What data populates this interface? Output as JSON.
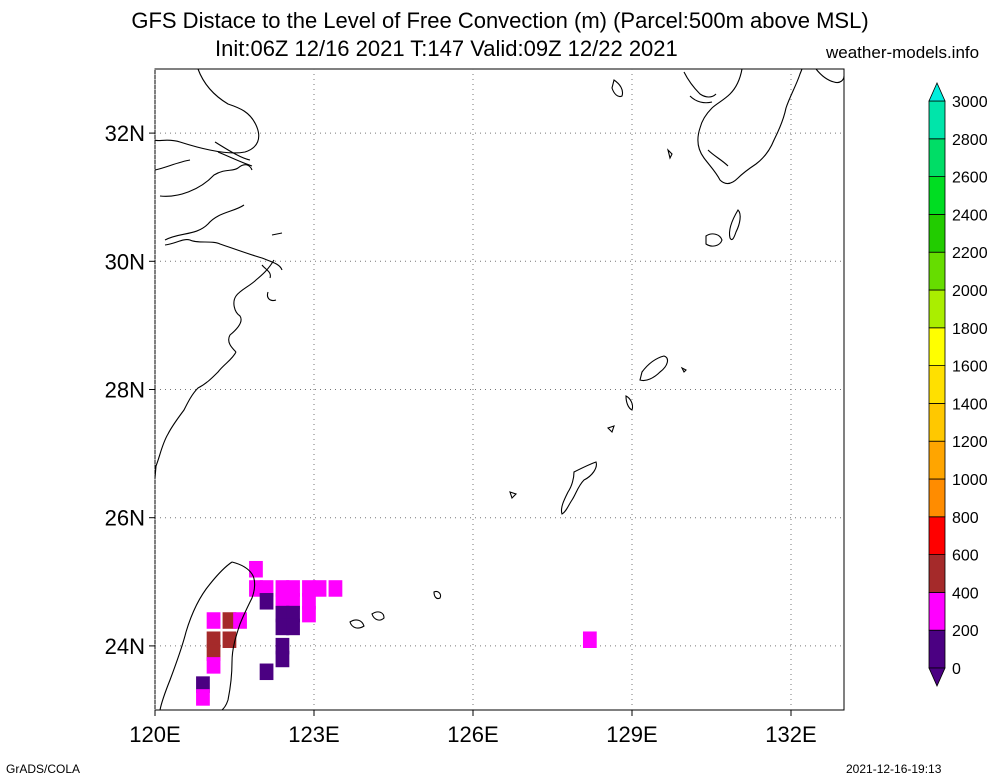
{
  "title": {
    "line1": "GFS Distace to the Level of Free Convection (m) (Parcel:500m above MSL)",
    "line2": "Init:06Z 12/16 2021 T:147 Valid:09Z 12/22 2021",
    "site": "weather-models.info"
  },
  "footer": {
    "left": "GrADS/COLA",
    "right": "2021-12-16-19:13"
  },
  "map": {
    "region": "East China Sea",
    "lon_range": [
      120,
      133
    ],
    "lat_range": [
      23,
      33
    ],
    "lon_ticks": [
      {
        "value": 120,
        "label": "120E"
      },
      {
        "value": 123,
        "label": "123E"
      },
      {
        "value": 126,
        "label": "126E"
      },
      {
        "value": 129,
        "label": "129E"
      },
      {
        "value": 132,
        "label": "132E"
      }
    ],
    "lat_ticks": [
      {
        "value": 24,
        "label": "24N"
      },
      {
        "value": 26,
        "label": "26N"
      },
      {
        "value": 28,
        "label": "28N"
      },
      {
        "value": 30,
        "label": "30N"
      },
      {
        "value": 32,
        "label": "32N"
      }
    ]
  },
  "colorbar": {
    "levels": [
      {
        "value": 0,
        "label": "0",
        "color": "#4b0082"
      },
      {
        "value": 200,
        "label": "200",
        "color": "#ff00ff"
      },
      {
        "value": 400,
        "label": "400",
        "color": "#a52a2a"
      },
      {
        "value": 600,
        "label": "600",
        "color": "#ff0000"
      },
      {
        "value": 800,
        "label": "800",
        "color": "#ff8c00"
      },
      {
        "value": 1000,
        "label": "1000",
        "color": "#ffa500"
      },
      {
        "value": 1200,
        "label": "1200",
        "color": "#ffc800"
      },
      {
        "value": 1400,
        "label": "1400",
        "color": "#ffe000"
      },
      {
        "value": 1600,
        "label": "1600",
        "color": "#ffff00"
      },
      {
        "value": 1800,
        "label": "1800",
        "color": "#aaee00"
      },
      {
        "value": 2000,
        "label": "2000",
        "color": "#66dd00"
      },
      {
        "value": 2200,
        "label": "2200",
        "color": "#22cc00"
      },
      {
        "value": 2400,
        "label": "2400",
        "color": "#00dd22"
      },
      {
        "value": 2600,
        "label": "2600",
        "color": "#00dd66"
      },
      {
        "value": 2800,
        "label": "2800",
        "color": "#00e5aa"
      },
      {
        "value": 3000,
        "label": "3000",
        "color": "#00eedd"
      }
    ]
  },
  "field_cells": [
    {
      "lon": 121.9,
      "lat": 25.2,
      "value": 200
    },
    {
      "lon": 121.9,
      "lat": 24.9,
      "value": 200
    },
    {
      "lon": 122.1,
      "lat": 24.9,
      "value": 200
    },
    {
      "lon": 122.4,
      "lat": 24.9,
      "value": 200
    },
    {
      "lon": 122.6,
      "lat": 24.9,
      "value": 200
    },
    {
      "lon": 122.9,
      "lat": 24.9,
      "value": 200
    },
    {
      "lon": 123.1,
      "lat": 24.9,
      "value": 200
    },
    {
      "lon": 123.4,
      "lat": 24.9,
      "value": 200
    },
    {
      "lon": 122.1,
      "lat": 24.7,
      "value": 0
    },
    {
      "lon": 122.4,
      "lat": 24.7,
      "value": 200
    },
    {
      "lon": 122.6,
      "lat": 24.7,
      "value": 200
    },
    {
      "lon": 122.9,
      "lat": 24.7,
      "value": 200
    },
    {
      "lon": 122.4,
      "lat": 24.5,
      "value": 0
    },
    {
      "lon": 122.6,
      "lat": 24.5,
      "value": 0
    },
    {
      "lon": 122.9,
      "lat": 24.5,
      "value": 200
    },
    {
      "lon": 121.1,
      "lat": 24.4,
      "value": 200
    },
    {
      "lon": 121.4,
      "lat": 24.4,
      "value": 400
    },
    {
      "lon": 121.6,
      "lat": 24.4,
      "value": 200
    },
    {
      "lon": 122.4,
      "lat": 24.3,
      "value": 0
    },
    {
      "lon": 122.6,
      "lat": 24.3,
      "value": 0
    },
    {
      "lon": 121.1,
      "lat": 24.1,
      "value": 400
    },
    {
      "lon": 121.4,
      "lat": 24.1,
      "value": 400
    },
    {
      "lon": 122.4,
      "lat": 24.0,
      "value": 0
    },
    {
      "lon": 121.1,
      "lat": 23.9,
      "value": 400
    },
    {
      "lon": 122.4,
      "lat": 23.8,
      "value": 0
    },
    {
      "lon": 121.1,
      "lat": 23.7,
      "value": 200
    },
    {
      "lon": 122.1,
      "lat": 23.6,
      "value": 0
    },
    {
      "lon": 120.9,
      "lat": 23.4,
      "value": 0
    },
    {
      "lon": 120.9,
      "lat": 23.2,
      "value": 200
    },
    {
      "lon": 128.2,
      "lat": 24.1,
      "value": 200
    }
  ]
}
